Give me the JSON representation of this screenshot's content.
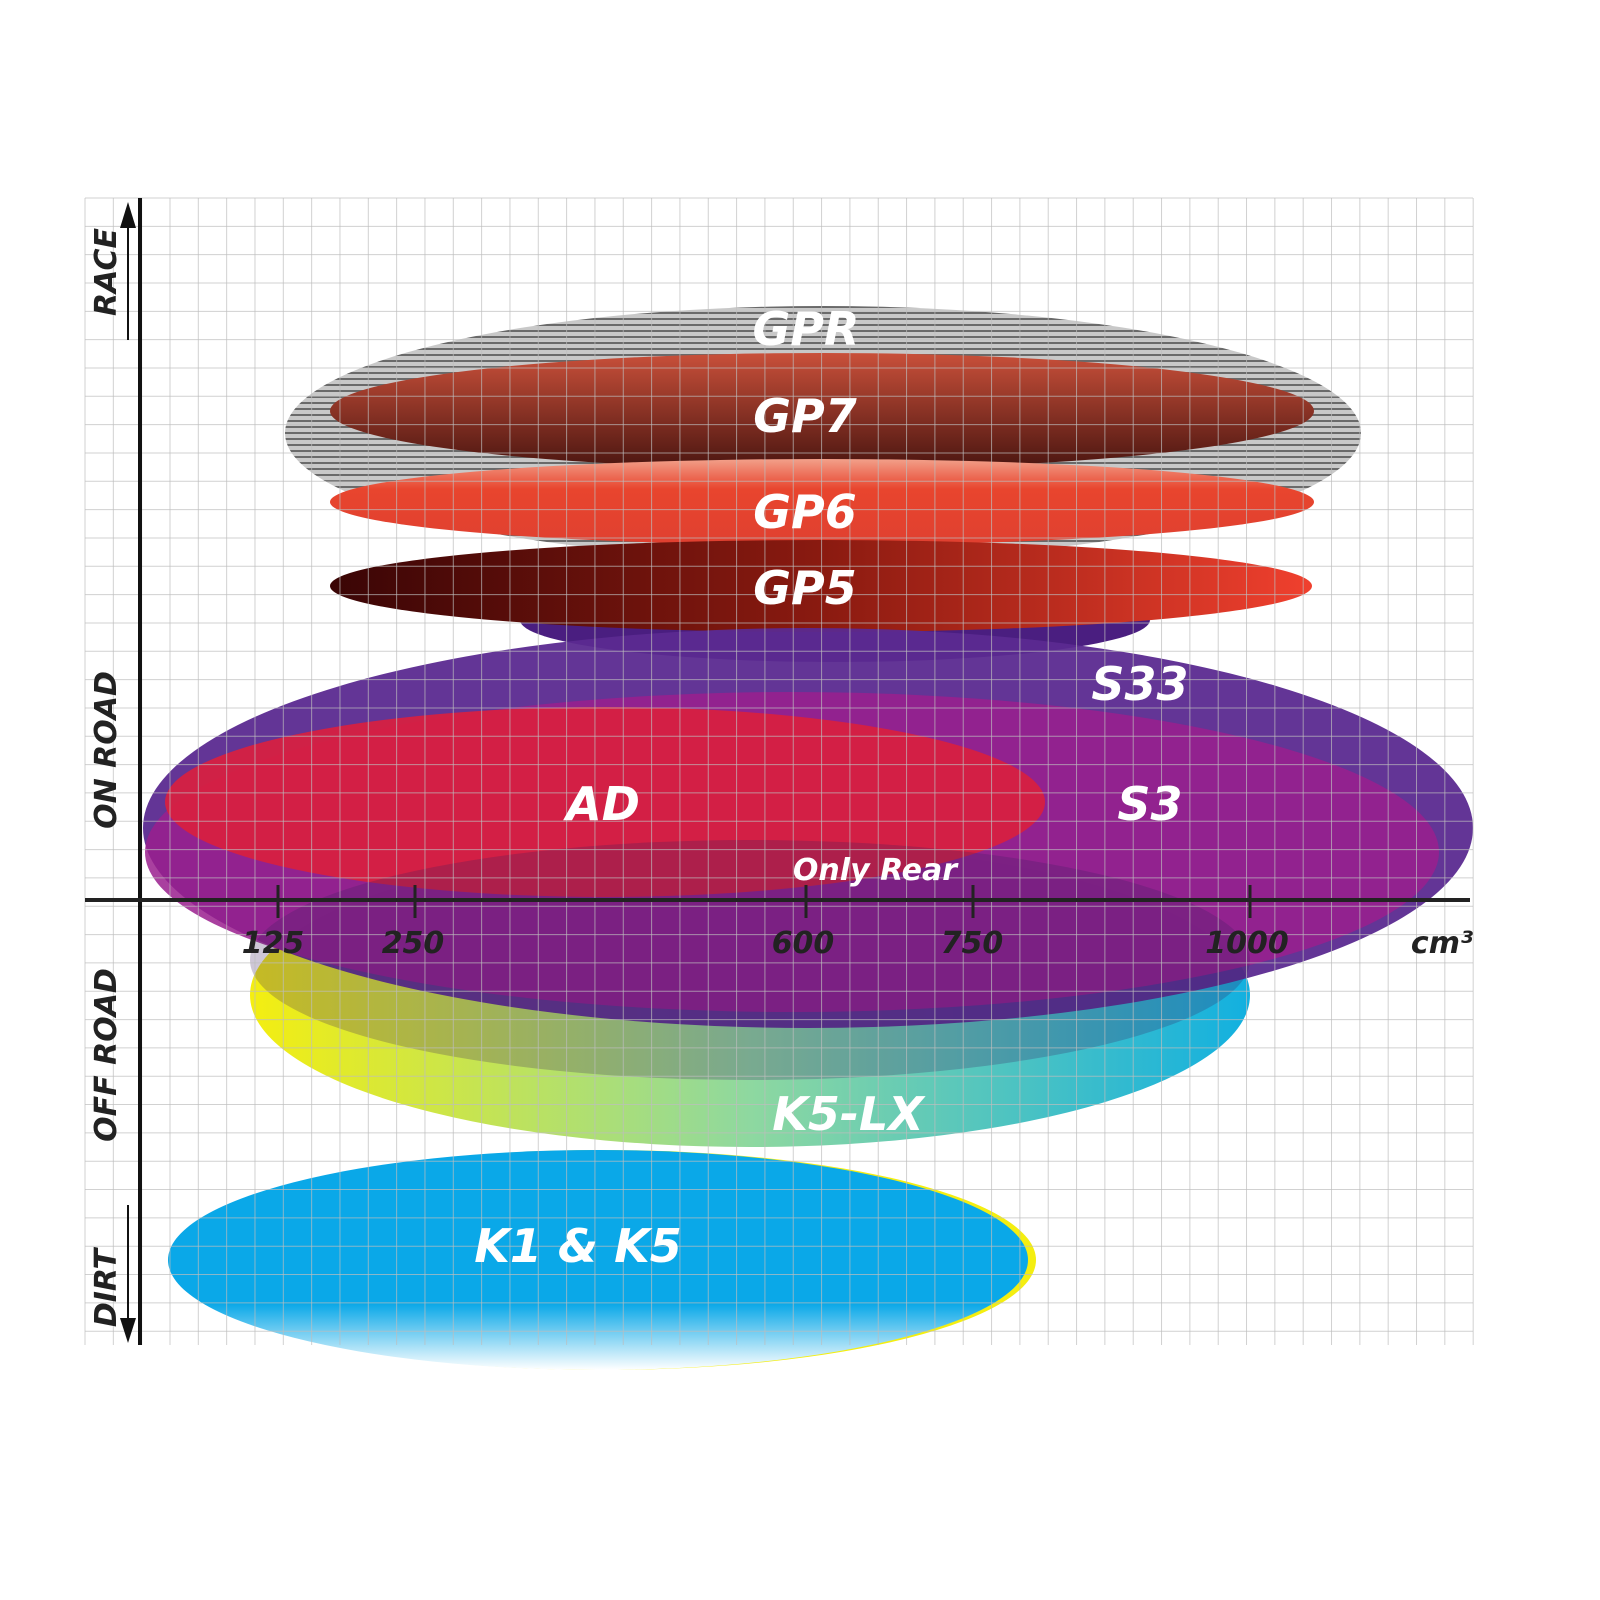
{
  "axes": {
    "y_labels": [
      "RACE",
      "ON ROAD",
      "OFF ROAD",
      "DIRT"
    ],
    "x_ticks": [
      "125",
      "250",
      "600",
      "750",
      "1000"
    ],
    "x_unit": "cm³"
  },
  "products": [
    {
      "name": "GPR",
      "color": "#9a9a9a"
    },
    {
      "name": "GP7",
      "color": "#b3422e"
    },
    {
      "name": "GP6",
      "color": "#e8452e"
    },
    {
      "name": "GP5",
      "color": "#a0191a"
    },
    {
      "name": "S33",
      "color": "#5b2a90"
    },
    {
      "name": "S3",
      "color": "#9a1e8e"
    },
    {
      "name": "AD",
      "color": "#d91f3f"
    },
    {
      "name": "K5-LX",
      "color": "#2ab6c8"
    },
    {
      "name": "K1 & K5",
      "color": "#0aa8e8"
    }
  ],
  "notes": {
    "ad_note": "Only Rear"
  }
}
